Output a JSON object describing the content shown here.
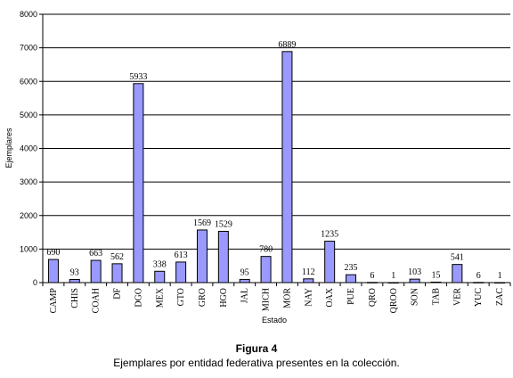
{
  "chart_data": {
    "type": "bar",
    "categories": [
      "CAMP",
      "CHIS",
      "COAH",
      "DF",
      "DGO",
      "MEX",
      "GTO",
      "GRO",
      "HGO",
      "JAL",
      "MICH",
      "MOR",
      "NAY",
      "OAX",
      "PUE",
      "QRO",
      "QROO",
      "SON",
      "TAB",
      "VER",
      "YUC",
      "ZAC"
    ],
    "values": [
      690,
      93,
      663,
      562,
      5933,
      338,
      613,
      1569,
      1529,
      95,
      780,
      6889,
      112,
      1235,
      235,
      6,
      1,
      103,
      15,
      541,
      6,
      1
    ],
    "data_labels": [
      "690",
      "93",
      "663",
      "562",
      "5933",
      "338",
      "613",
      "1569",
      "1529",
      "95",
      "780",
      "6889",
      "112",
      "1235",
      "235",
      "6",
      "1",
      "103",
      "15",
      "541",
      "6",
      "1"
    ],
    "xlabel": "Estado",
    "ylabel": "Ejemplares",
    "ylim": [
      0,
      8000
    ],
    "yticks": [
      "0",
      "1000",
      "2000",
      "3000",
      "4000",
      "5000",
      "6000",
      "7000",
      "8000"
    ],
    "grid": true,
    "bar_color": "#9999ff"
  },
  "caption": {
    "title": "Figura 4",
    "text": "Ejemplares por entidad federativa presentes en la colección."
  }
}
